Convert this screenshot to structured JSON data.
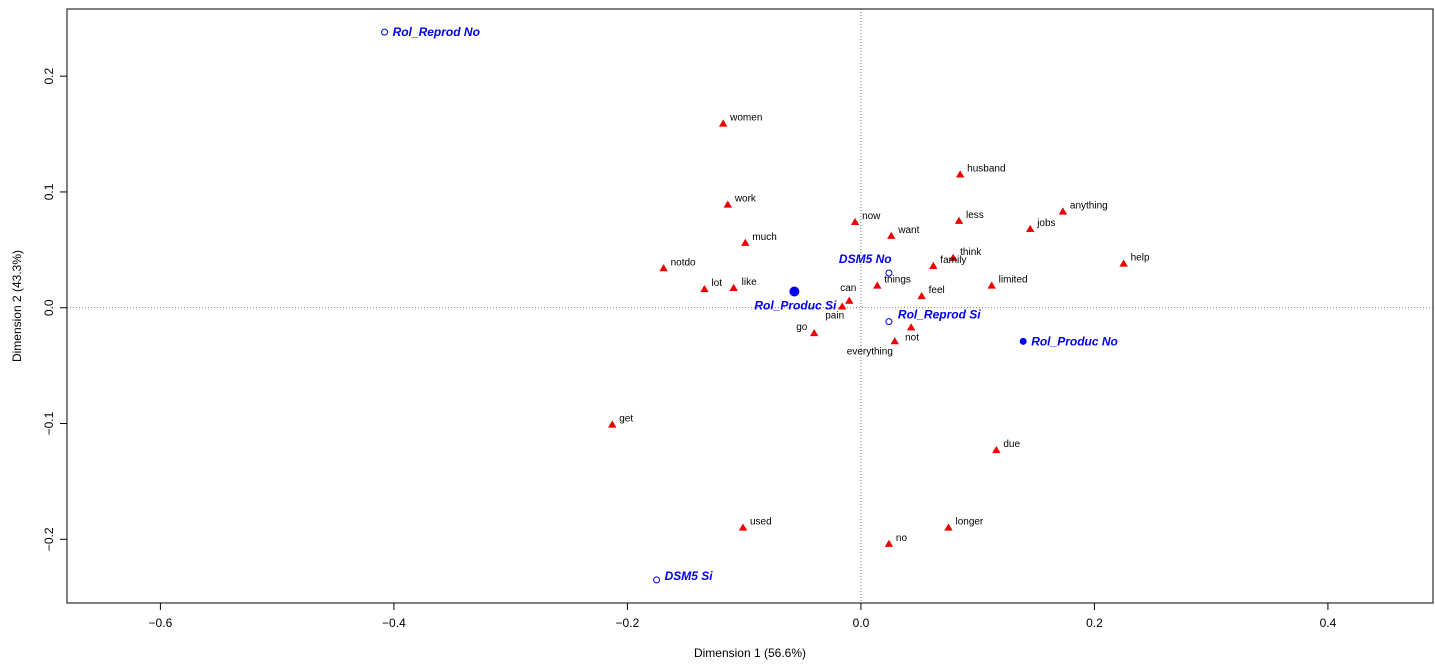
{
  "chart_data": {
    "type": "scatter",
    "title": "",
    "xlabel": "Dimension 1 (56.6%)",
    "ylabel": "Dimension 2 (43.3%)",
    "xlim": [
      -0.68,
      0.49
    ],
    "ylim": [
      -0.255,
      0.258
    ],
    "xticks": [
      -0.6,
      -0.4,
      -0.2,
      0.0,
      0.2,
      0.4
    ],
    "yticks": [
      -0.2,
      -0.1,
      0.0,
      0.1,
      0.2
    ],
    "xtick_labels": [
      "−0.6",
      "−0.4",
      "−0.2",
      "0.0",
      "0.2",
      "0.4"
    ],
    "ytick_labels": [
      "−0.2",
      "−0.1",
      "0.0",
      "0.1",
      "0.2"
    ],
    "grid": false,
    "reference_lines": {
      "x": 0,
      "y": 0,
      "style": "dotted"
    },
    "colors": {
      "words": "#ee0000",
      "categories": "#0000ee",
      "axis": "#000000"
    },
    "series": [
      {
        "marker": "triangle",
        "color": "#ee0000",
        "points": [
          {
            "label": "women",
            "x": -0.118,
            "y": 0.159
          },
          {
            "label": "husband",
            "x": 0.085,
            "y": 0.115
          },
          {
            "label": "work",
            "x": -0.114,
            "y": 0.089
          },
          {
            "label": "anything",
            "x": 0.173,
            "y": 0.083
          },
          {
            "label": "now",
            "x": -0.005,
            "y": 0.074
          },
          {
            "label": "less",
            "x": 0.084,
            "y": 0.075
          },
          {
            "label": "jobs",
            "x": 0.145,
            "y": 0.068
          },
          {
            "label": "want",
            "x": 0.026,
            "y": 0.062
          },
          {
            "label": "much",
            "x": -0.099,
            "y": 0.056
          },
          {
            "label": "think",
            "x": 0.079,
            "y": 0.043
          },
          {
            "label": "help",
            "x": 0.225,
            "y": 0.038
          },
          {
            "label": "notdo",
            "x": -0.169,
            "y": 0.034
          },
          {
            "label": "family",
            "x": 0.062,
            "y": 0.036
          },
          {
            "label": "limited",
            "x": 0.112,
            "y": 0.019
          },
          {
            "label": "lot",
            "x": -0.134,
            "y": 0.016
          },
          {
            "label": "like",
            "x": -0.109,
            "y": 0.017
          },
          {
            "label": "things",
            "x": 0.014,
            "y": 0.019
          },
          {
            "label": "feel",
            "x": 0.052,
            "y": 0.01
          },
          {
            "label": "can",
            "x": -0.01,
            "y": 0.006
          },
          {
            "label": "pain",
            "x": -0.016,
            "y": 0.001
          },
          {
            "label": "go",
            "x": -0.04,
            "y": -0.022
          },
          {
            "label": "not",
            "x": 0.043,
            "y": -0.017
          },
          {
            "label": "everything",
            "x": 0.029,
            "y": -0.029
          },
          {
            "label": "get",
            "x": -0.213,
            "y": -0.101
          },
          {
            "label": "due",
            "x": 0.116,
            "y": -0.123
          },
          {
            "label": "used",
            "x": -0.101,
            "y": -0.19
          },
          {
            "label": "longer",
            "x": 0.075,
            "y": -0.19
          },
          {
            "label": "no",
            "x": 0.024,
            "y": -0.204
          }
        ]
      },
      {
        "marker": "circle",
        "color": "#0000ee",
        "points": [
          {
            "label": "Rol_Reprod No",
            "x": -0.408,
            "y": 0.238,
            "fill": "open"
          },
          {
            "label": "DSM5 No",
            "x": 0.024,
            "y": 0.03,
            "fill": "open"
          },
          {
            "label": "Rol_Produc Si",
            "x": -0.057,
            "y": 0.014,
            "fill": "solid"
          },
          {
            "label": "Rol_Reprod Si",
            "x": 0.024,
            "y": -0.012,
            "fill": "open"
          },
          {
            "label": "Rol_Produc No",
            "x": 0.139,
            "y": -0.029,
            "fill": "solid"
          },
          {
            "label": "DSM5 Si",
            "x": -0.175,
            "y": -0.235,
            "fill": "open"
          }
        ]
      }
    ]
  }
}
